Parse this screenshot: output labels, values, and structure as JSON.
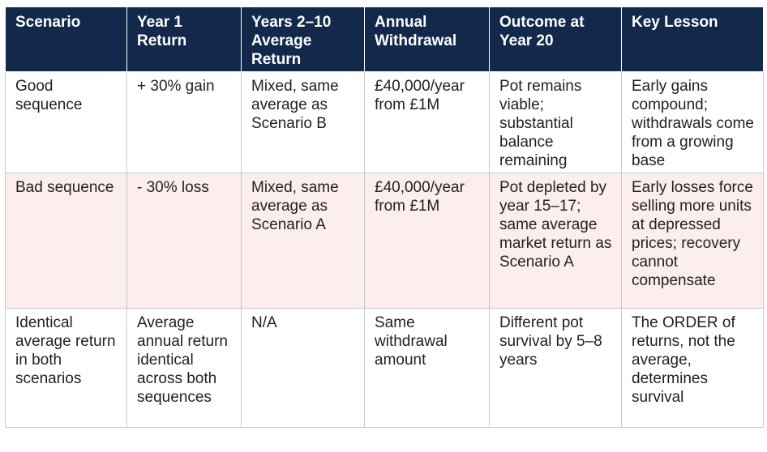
{
  "table": {
    "headers": [
      "Scenario",
      "Year 1 Return",
      "Years 2–10 Average Return",
      "Annual Withdrawal",
      "Outcome at Year 20",
      "Key Lesson"
    ],
    "rows": [
      [
        "Good sequence",
        "+ 30% gain",
        "Mixed, same average as Scenario B",
        "£40,000/year from £1M",
        "Pot remains viable; substantial balance remaining",
        "Early gains compound; withdrawals come from a growing base"
      ],
      [
        "Bad sequence",
        "- 30% loss",
        "Mixed, same average as Scenario A",
        "£40,000/year from £1M",
        "Pot depleted by year 15–17; same average market return as Scenario A",
        "Early losses force selling more units at depressed prices; recovery cannot compensate"
      ],
      [
        "Identical average return in both scenarios",
        "Average annual return identical across both sequences",
        "N/A",
        "Same withdrawal amount",
        "Different pot survival by 5–8 years",
        "The ORDER of returns, not the average, determines survival"
      ]
    ]
  },
  "colors": {
    "header_bg": "#13294b",
    "header_text": "#ffffff",
    "highlight_row_bg": "#fdeeee",
    "border": "#c8c8c8"
  }
}
